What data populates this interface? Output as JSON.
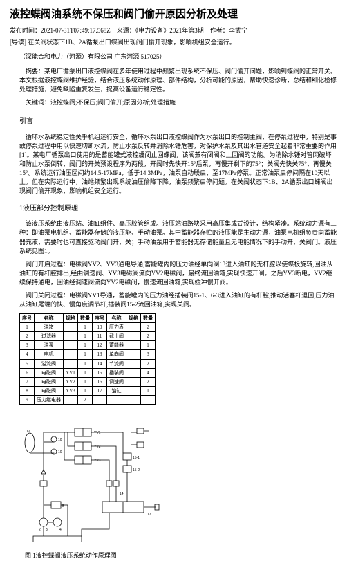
{
  "title": "液控蝶阀油系统不保压和阀门偷开原因分析及处理",
  "meta": {
    "pub_label": "发布时间：",
    "pub_time": "2021-07-31T07:49:17.568Z",
    "source_label": "来源：",
    "source": "《电力设备》2021年第3期",
    "author_label": "作者：",
    "author": "李武宁"
  },
  "lead_note": "[导读] 在关阀状态下1B、2A循泵出口蝶阀出现阀门偷开现象，影响机组安全运行。",
  "affiliation": "（深能合和电力（河源）有限公司  广东河源  517025）",
  "abstract_label": "摘要：",
  "abstract_body": "某电厂循泵出口液控蝶阀在多年使用过程中频繁出现系统不保压、阀门偷开问题，影响到蝶阀的正常开关。本文根据液控蝶阀维护经验，结合液压系统动作原理、部件结构，分析可能的原因，帮助快速诊断，总结和细化检修处理措施，避免缺陷重复发生，提高设备运行稳定性。",
  "keywords_label": "关键词：",
  "keywords_body": "液控蝶阀;不保压;阀门偷开;原因分析;处理措施",
  "sections": {
    "intro_heading": "引言",
    "intro_body": "循环水系统稳定性关乎机组运行安全，循环水泵出口液控蝶阀作为水泵出口的控制主阀，在停泵过程中，特别是事故停泵过程中用以快速切断水流，防止水泵反转并消除水锤危害，对保护水泵及其出水管道安全起着非常重要的作用[1]。某电厂循泵出口使用的是蓄能罐式液控缓闭止回蝶阀，该阀兼有闭阀和止回阀的功能。为消除水锤对管网破坏和防止水泵倒转，阀门的开关预设程序为两段，开阀时先快开15°后泵，再慢开剩下的75°；关阀先快关75°，再慢关15°。系统运行油压区间约14.5-17MPa，低于14.3MPa，油泵自动联启，至17MPa停泵。正常油泵启停间隔在10天以上。但在实际运行中，油站频繁出现系统油压偷降下降，油泵频繁启停问题。在关阀状态下1B、2A循泵出口蝶阀出现阀门偷开现象，影响机组安全运行。",
    "s1_heading": "1液压部分控制原理",
    "s1_p1": "该液压系统由液压站、油缸组件、高压胶管组成。液压站油路块采用高压集成式设计，结构紧凑。系统动力源有三种：即油泵电机组、蓄能器存储的液压能、手动油泵。其中蓄能器存贮的液压能是主动力源，油泵电机组负责向蓄能器充液，需要时也可直接驱动阀门开、关；手动油泵用于蓄能器无存储能量且无电能情况下的手动开、关阀门。液压系统见图1。",
    "s1_p2": "阀门开启过程：电磁阀YV2、YV3通电导通,蓄能罐内的压力油经单向阀13进入油缸的无杆腔以使蝶板旋转,回油从油缸的有杆腔排出,经由调速阀、YV3电磁阀流向YV2电磁阀，最终流回油箱,实现快速开阀。之后YV3断电，YV2继续保持通电，回油经调速阀流向YV2电磁阀，慢速流回油箱,实现缓冲慢开阀。",
    "s1_p3": "阀门关闭过程：电磁阀YV1导通，蓄能罐内的压力油经插装阀15-1、6-3进入油缸的有杆腔,推动活塞杆退回,压力油从油缸尾端的快、慢角度调节杆,插装阀15-2流回油箱,实现关阀。",
    "fig1_caption": "图 1液控蝶阀液压系统动作原理图"
  },
  "table": {
    "headers": [
      "序号",
      "名称",
      "规格",
      "数量",
      "序号",
      "名称",
      "规格",
      "数量"
    ],
    "rows": [
      [
        "1",
        "油箱",
        "",
        "1",
        "10",
        "压力表",
        "",
        "2"
      ],
      [
        "2",
        "过滤器",
        "",
        "1",
        "11",
        "截止阀",
        "",
        "2"
      ],
      [
        "3",
        "油泵",
        "",
        "1",
        "12",
        "蓄能器",
        "",
        "1"
      ],
      [
        "4",
        "电机",
        "",
        "1",
        "13",
        "单向阀",
        "",
        "3"
      ],
      [
        "5",
        "溢流阀",
        "",
        "1",
        "14",
        "节流阀",
        "",
        "2"
      ],
      [
        "6",
        "电磁阀",
        "YV1",
        "1",
        "15",
        "插装阀",
        "",
        "4"
      ],
      [
        "7",
        "电磁阀",
        "YV2",
        "1",
        "16",
        "调速阀",
        "",
        "2"
      ],
      [
        "8",
        "电磁阀",
        "YV3",
        "1",
        "17",
        "油缸",
        "",
        "1"
      ],
      [
        "9",
        "压力继电器",
        "",
        "2",
        "",
        "",
        "",
        ""
      ]
    ]
  },
  "diagram_colors": {
    "stroke": "#000000",
    "fill": "#ffffff",
    "bg": "#ffffff"
  }
}
